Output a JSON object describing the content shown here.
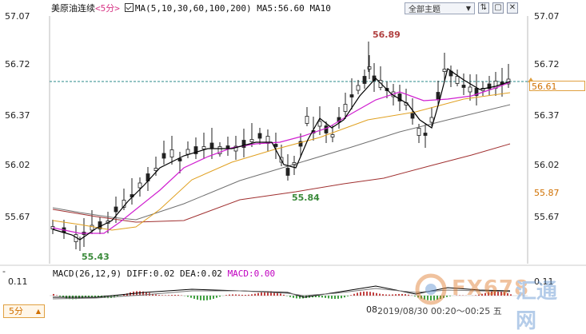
{
  "header": {
    "symbol": "美原油连续",
    "timeframe": "<5分>",
    "ma_title": "MA(5,10,30,60,100,200)",
    "ma5": "MA5:56.60",
    "ma10": "MA10"
  },
  "toolbar": {
    "theme_label": "全部主题",
    "theme_arrow": "▼",
    "buttons": [
      "⇅",
      "▢",
      "✕"
    ]
  },
  "price_axis": {
    "left": [
      "57.07",
      "56.72",
      "56.37",
      "56.02",
      "55.67"
    ],
    "right": [
      "57.07",
      "56.72",
      "56.37",
      "56.02",
      "55.67"
    ],
    "current_price": "56.61",
    "level_marker": "55.87"
  },
  "annotations": {
    "high": "56.89",
    "low_mid": "55.84",
    "low": "55.43"
  },
  "macd": {
    "header_prefix": "MACD(26,12,9)",
    "diff": "DIFF:0.02",
    "dea": "DEA:0.02",
    "macd_value": "MACD:0.00",
    "axis_left": "0.11",
    "axis_right": "0.11",
    "minus_mark": "-"
  },
  "footer": {
    "timeframe_tab": "5分",
    "timeframe_arrow": "▲",
    "axis_tick": "08",
    "time_readout": "2019/08/30  00:20～00:25  五"
  },
  "watermark": {
    "text": "FX678",
    "text_cn": "汇通网"
  },
  "colors": {
    "up": "#111111",
    "down": "#111111",
    "ma5": "#000000",
    "ma10": "#d020d0",
    "ma30": "#e0a020",
    "ma60": "#909090",
    "ma100": "#606060",
    "ma200": "#a03030",
    "dash_line": "#2a8a8a",
    "high_label": "#b04040",
    "low_label": "#3a8a3a"
  }
}
